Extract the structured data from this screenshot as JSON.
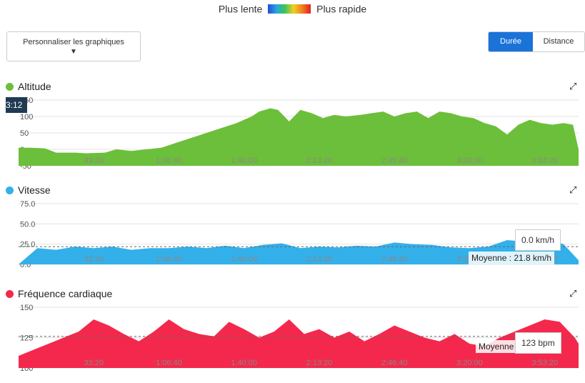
{
  "legend": {
    "slow": "Plus lente",
    "fast": "Plus rapide"
  },
  "controls": {
    "customize": "Personnaliser les graphiques",
    "customize_arrow": "▼",
    "duration": "Durée",
    "distance": "Distance"
  },
  "colors": {
    "altitude": "#6cbf3a",
    "speed": "#33b0ea",
    "heart": "#f4284c",
    "toggle_active": "#1a73d9"
  },
  "chart_data": [
    {
      "type": "area",
      "title": "Altitude",
      "ylim": [
        -50,
        150
      ],
      "yticks": [
        "150",
        "100",
        "50",
        "0",
        "-50"
      ],
      "yticks_values": [
        150,
        100,
        50,
        0,
        -50
      ],
      "xticks": [
        "33:20",
        "1:06:40",
        "1:40:00",
        "2:13:20",
        "2:46:40",
        "3:20:00",
        "3:53:20"
      ],
      "xticks_values": [
        2000,
        4000,
        6000,
        8000,
        10000,
        12000,
        14000
      ],
      "x": [
        0,
        300,
        700,
        1000,
        1500,
        1800,
        2300,
        2600,
        3000,
        3400,
        3800,
        4200,
        4600,
        5000,
        5400,
        5800,
        6200,
        6400,
        6700,
        6900,
        7200,
        7500,
        7800,
        8100,
        8400,
        8700,
        9100,
        9400,
        9700,
        10000,
        10300,
        10600,
        10900,
        11200,
        11500,
        11800,
        12100,
        12400,
        12700,
        13000,
        13300,
        13600,
        13900,
        14200,
        14500,
        14750,
        14900
      ],
      "values": [
        5,
        5,
        3,
        -10,
        -10,
        -12,
        -10,
        0,
        -5,
        0,
        5,
        20,
        35,
        50,
        65,
        80,
        100,
        115,
        125,
        120,
        85,
        120,
        110,
        95,
        105,
        100,
        105,
        110,
        115,
        100,
        110,
        115,
        95,
        115,
        110,
        100,
        95,
        80,
        70,
        45,
        75,
        90,
        80,
        75,
        80,
        75,
        0
      ],
      "badge": "3:12"
    },
    {
      "type": "area",
      "title": "Vitesse",
      "ylim": [
        0,
        75
      ],
      "yticks": [
        "75.0",
        "50.0",
        "25.0",
        "0.0"
      ],
      "yticks_values": [
        75,
        50,
        25,
        0
      ],
      "xticks": [
        "33:20",
        "1:06:40",
        "1:40:00",
        "2:13:20",
        "2:46:40",
        "3:20:00",
        "3:53:20"
      ],
      "xticks_values": [
        2000,
        4000,
        6000,
        8000,
        10000,
        12000,
        14000
      ],
      "average": 21.8,
      "average_label": "Moyenne : 21.8 km/h",
      "tooltip": "0.0 km/h",
      "x": [
        0,
        500,
        1000,
        1500,
        2000,
        2500,
        3000,
        3500,
        4000,
        4500,
        5000,
        5500,
        6000,
        6500,
        7000,
        7500,
        8000,
        8500,
        9000,
        9500,
        10000,
        10500,
        11000,
        11500,
        12000,
        12500,
        13000,
        13500,
        14000,
        14500,
        14900
      ],
      "values": [
        0,
        20,
        18,
        22,
        20,
        22,
        18,
        20,
        20,
        22,
        20,
        23,
        20,
        24,
        26,
        20,
        22,
        21,
        23,
        22,
        27,
        25,
        24,
        21,
        20,
        22,
        30,
        28,
        32,
        25,
        5
      ]
    },
    {
      "type": "area",
      "title": "Fréquence cardiaque",
      "ylim": [
        100,
        150
      ],
      "yticks": [
        "150",
        "125",
        "100"
      ],
      "yticks_values": [
        150,
        125,
        100
      ],
      "xticks": [
        "33:20",
        "1:06:40",
        "1:40:00",
        "2:13:20",
        "2:46:40",
        "3:20:00",
        "3:53:20"
      ],
      "xticks_values": [
        2000,
        4000,
        6000,
        8000,
        10000,
        12000,
        14000
      ],
      "average": 126,
      "average_label": "Moyenne",
      "tooltip": "123 bpm",
      "x": [
        0,
        400,
        800,
        1200,
        1600,
        2000,
        2400,
        2800,
        3200,
        3600,
        4000,
        4400,
        4800,
        5200,
        5600,
        6000,
        6400,
        6800,
        7200,
        7600,
        8000,
        8400,
        8800,
        9200,
        9600,
        10000,
        10400,
        10800,
        11200,
        11600,
        12000,
        12400,
        12800,
        13200,
        13600,
        14000,
        14400,
        14800,
        14900
      ],
      "values": [
        110,
        115,
        120,
        125,
        130,
        140,
        135,
        128,
        122,
        130,
        140,
        132,
        128,
        126,
        138,
        132,
        125,
        130,
        140,
        128,
        132,
        125,
        130,
        122,
        128,
        135,
        130,
        125,
        122,
        128,
        120,
        118,
        125,
        130,
        135,
        140,
        138,
        125,
        120
      ]
    }
  ]
}
